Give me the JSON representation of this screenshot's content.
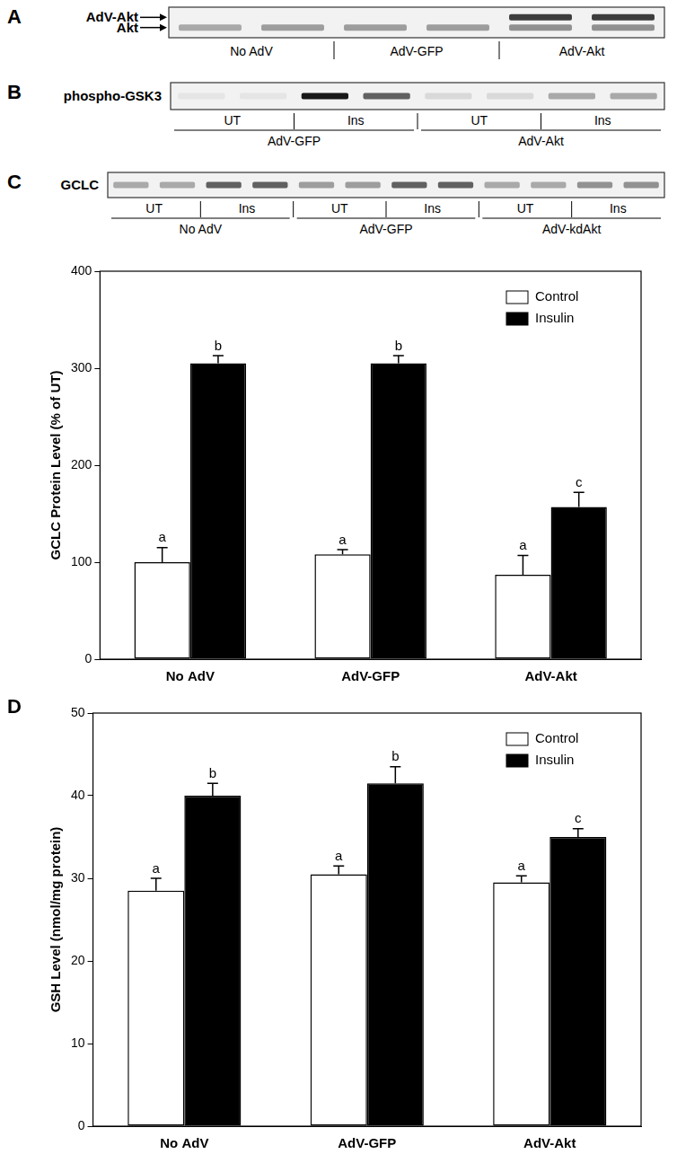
{
  "blots": [
    {
      "panel": "A",
      "arrows": true,
      "bands": [
        {
          "name": "AdV-Akt",
          "intensity": [
            0,
            0,
            0,
            0,
            0.75,
            0.75
          ]
        },
        {
          "name": "Akt",
          "intensity": [
            0.3,
            0.35,
            0.35,
            0.35,
            0.4,
            0.4
          ]
        }
      ],
      "groups": [
        "No AdV",
        "AdV-GFP",
        "AdV-Akt"
      ]
    },
    {
      "panel": "B",
      "arrows": false,
      "bands": [
        {
          "name": "phospho-GSK3",
          "intensity": [
            0.05,
            0.05,
            0.9,
            0.6,
            0.1,
            0.1,
            0.3,
            0.3
          ]
        }
      ],
      "conditions": [
        "UT",
        "Ins",
        "UT",
        "Ins"
      ],
      "groups": [
        "AdV-GFP",
        "AdV-Akt"
      ]
    },
    {
      "panel": "C",
      "arrows": false,
      "bands": [
        {
          "name": "GCLC",
          "intensity": [
            0.3,
            0.3,
            0.6,
            0.6,
            0.35,
            0.35,
            0.6,
            0.6,
            0.3,
            0.3,
            0.4,
            0.4
          ]
        }
      ],
      "conditions": [
        "UT",
        "Ins",
        "UT",
        "Ins",
        "UT",
        "Ins"
      ],
      "groups": [
        "No AdV",
        "AdV-GFP",
        "AdV-kdAkt"
      ]
    }
  ],
  "chart_data": [
    {
      "type": "bar",
      "categories": [
        "No AdV",
        "AdV-GFP",
        "AdV-Akt"
      ],
      "y_label": "GCLC Protein Level (% of UT)",
      "ylim": [
        0,
        400
      ],
      "yticks": [
        0,
        100,
        200,
        300,
        400
      ],
      "grid": false,
      "legend": "upper right",
      "series": [
        {
          "name": "Control",
          "color": "#ffffff",
          "values": [
            100,
            108,
            87
          ],
          "errors": [
            15,
            5,
            20
          ],
          "letters": [
            "a",
            "a",
            "a"
          ]
        },
        {
          "name": "Insulin",
          "color": "#000000",
          "values": [
            305,
            305,
            157
          ],
          "errors": [
            8,
            8,
            15
          ],
          "letters": [
            "b",
            "b",
            "c"
          ]
        }
      ]
    },
    {
      "type": "bar",
      "panel": "D",
      "categories": [
        "No AdV",
        "AdV-GFP",
        "AdV-Akt"
      ],
      "y_label": "GSH Level (nmol/mg protein)",
      "ylim": [
        0,
        50
      ],
      "yticks": [
        0,
        10,
        20,
        30,
        40,
        50
      ],
      "grid": false,
      "legend": "upper right",
      "series": [
        {
          "name": "Control",
          "color": "#ffffff",
          "values": [
            28.5,
            30.5,
            29.5
          ],
          "errors": [
            1.5,
            1,
            0.8
          ],
          "letters": [
            "a",
            "a",
            "a"
          ]
        },
        {
          "name": "Insulin",
          "color": "#000000",
          "values": [
            40,
            41.5,
            35
          ],
          "errors": [
            1.5,
            2,
            1
          ],
          "letters": [
            "b",
            "b",
            "c"
          ]
        }
      ]
    }
  ]
}
